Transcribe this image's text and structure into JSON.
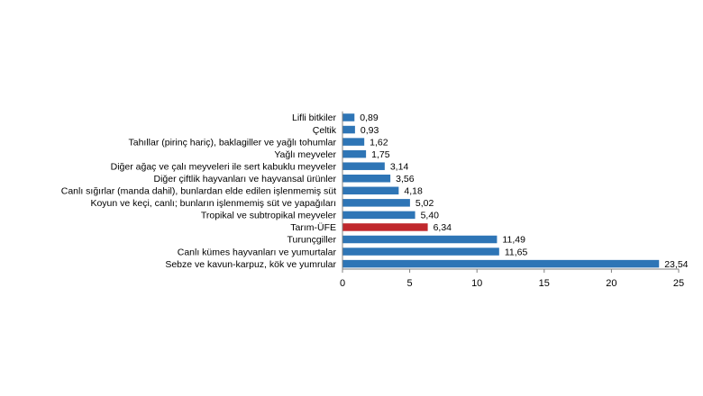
{
  "chart_data": {
    "type": "bar",
    "orientation": "horizontal",
    "categories": [
      "Lifli bitkiler",
      "Çeltik",
      "Tahıllar (pirinç hariç), baklagiller ve yağlı tohumlar",
      "Yağlı meyveler",
      "Diğer ağaç ve çalı meyveleri ile sert kabuklu meyveler",
      "Diğer çiftlik hayvanları ve hayvansal ürünler",
      "Canlı sığırlar (manda dahil), bunlardan elde edilen işlenmemiş süt",
      "Koyun ve keçi, canlı; bunların işlenmemiş süt ve yapağıları",
      "Tropikal ve subtropikal meyveler",
      "Tarım-ÜFE",
      "Turunçgiller",
      "Canlı kümes hayvanları ve yumurtalar",
      "Sebze ve kavun-karpuz, kök ve yumrular"
    ],
    "values": [
      0.89,
      0.93,
      1.62,
      1.75,
      3.14,
      3.56,
      4.18,
      5.02,
      5.4,
      6.34,
      11.49,
      11.65,
      23.54
    ],
    "value_labels": [
      "0,89",
      "0,93",
      "1,62",
      "1,75",
      "3,14",
      "3,56",
      "4,18",
      "5,02",
      "5,40",
      "6,34",
      "11,49",
      "11,65",
      "23,54"
    ],
    "highlight_category": "Tarım-ÜFE",
    "xlim": [
      0,
      25
    ],
    "xticks": [
      0,
      5,
      10,
      15,
      20,
      25
    ],
    "xtick_labels": [
      "0",
      "5",
      "10",
      "15",
      "20",
      "25"
    ],
    "grid": false,
    "legend": "none",
    "title": "",
    "xlabel": "",
    "ylabel": ""
  },
  "colors": {
    "bar": "#2e75b6",
    "highlight": "#c0282d",
    "axis": "#808080",
    "text": "#000000"
  }
}
